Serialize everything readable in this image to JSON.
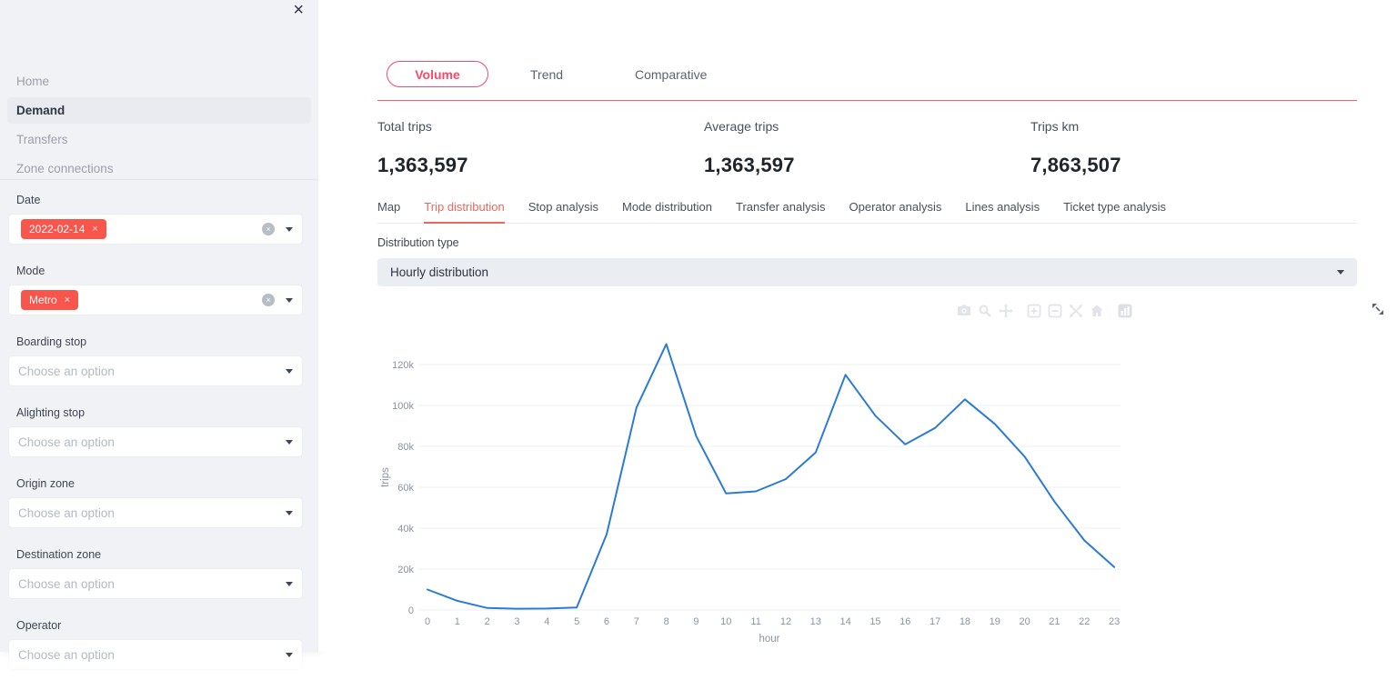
{
  "sidebar": {
    "close_label": "×",
    "nav": [
      {
        "label": "Home",
        "active": false
      },
      {
        "label": "Demand",
        "active": true
      },
      {
        "label": "Transfers",
        "active": false
      },
      {
        "label": "Zone connections",
        "active": false
      }
    ],
    "filters": {
      "date": {
        "label": "Date",
        "tag": "2022-02-14",
        "tag_close": "×"
      },
      "mode": {
        "label": "Mode",
        "tag": "Metro",
        "tag_close": "×"
      },
      "boarding": {
        "label": "Boarding stop",
        "placeholder": "Choose an option"
      },
      "alighting": {
        "label": "Alighting stop",
        "placeholder": "Choose an option"
      },
      "origin": {
        "label": "Origin zone",
        "placeholder": "Choose an option"
      },
      "destination": {
        "label": "Destination zone",
        "placeholder": "Choose an option"
      },
      "operator": {
        "label": "Operator",
        "placeholder": "Choose an option"
      }
    },
    "clear_icon": "×"
  },
  "main": {
    "tabs": [
      {
        "label": "Volume",
        "active": true
      },
      {
        "label": "Trend",
        "active": false
      },
      {
        "label": "Comparative",
        "active": false
      }
    ],
    "kpis": [
      {
        "label": "Total trips",
        "value": "1,363,597"
      },
      {
        "label": "Average trips",
        "value": "1,363,597"
      },
      {
        "label": "Trips km",
        "value": "7,863,507"
      }
    ],
    "subtabs": [
      {
        "label": "Map",
        "active": false
      },
      {
        "label": "Trip distribution",
        "active": true
      },
      {
        "label": "Stop analysis",
        "active": false
      },
      {
        "label": "Mode distribution",
        "active": false
      },
      {
        "label": "Transfer analysis",
        "active": false
      },
      {
        "label": "Operator analysis",
        "active": false
      },
      {
        "label": "Lines analysis",
        "active": false
      },
      {
        "label": "Ticket type analysis",
        "active": false
      }
    ],
    "distribution": {
      "label": "Distribution type",
      "value": "Hourly distribution"
    },
    "modebar_icons": [
      "camera-icon",
      "zoom-icon",
      "pan-icon",
      "zoom-in-icon",
      "zoom-out-icon",
      "autoscale-icon",
      "reset-axes-icon",
      "plotly-logo-icon"
    ]
  },
  "colors": {
    "accent_pink": "#f74a6b",
    "accent_coral": "#ef655f",
    "tag_red": "#f8564d",
    "line_blue": "#2b7bd4",
    "sidebar_bg": "#f1f2f5"
  },
  "chart_data": {
    "type": "line",
    "title": "",
    "xlabel": "hour",
    "ylabel": "trips",
    "x": [
      0,
      1,
      2,
      3,
      4,
      5,
      6,
      7,
      8,
      9,
      10,
      11,
      12,
      13,
      14,
      15,
      16,
      17,
      18,
      19,
      20,
      21,
      22,
      23
    ],
    "series": [
      {
        "name": "trips",
        "values": [
          10000,
          4500,
          1000,
          600,
          700,
          1200,
          37000,
          99000,
          130000,
          85000,
          57000,
          58000,
          64000,
          77000,
          115000,
          95000,
          81000,
          89000,
          103000,
          91000,
          75000,
          53000,
          34000,
          21000
        ]
      }
    ],
    "ylim": [
      0,
      135000
    ],
    "ytick_values": [
      0,
      20000,
      40000,
      60000,
      80000,
      100000,
      120000
    ],
    "ytick_labels": [
      "0",
      "20k",
      "40k",
      "60k",
      "80k",
      "100k",
      "120k"
    ],
    "xtick_labels": [
      "0",
      "1",
      "2",
      "3",
      "4",
      "5",
      "6",
      "7",
      "8",
      "9",
      "10",
      "11",
      "12",
      "13",
      "14",
      "15",
      "16",
      "17",
      "18",
      "19",
      "20",
      "21",
      "22",
      "23"
    ],
    "grid": true,
    "legend": "none",
    "line_color": "#2b7bd4"
  }
}
